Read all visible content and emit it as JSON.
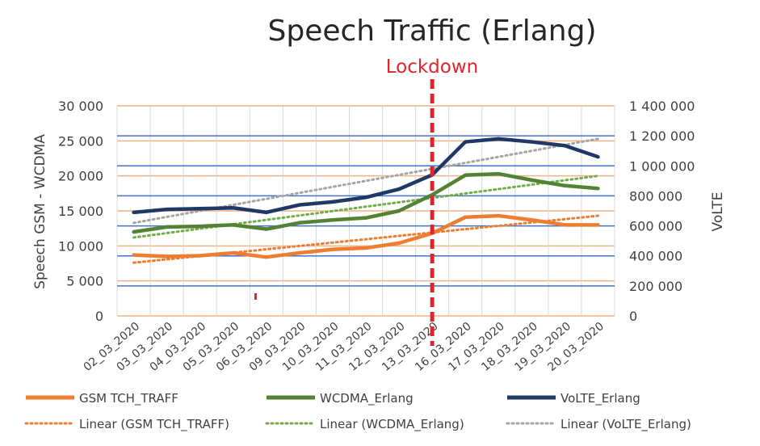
{
  "chart_data": {
    "type": "line",
    "title": "Speech Traffic (Erlang)",
    "annotation": "Lockdown",
    "ylabel_left": "Speech  GSM - WCDMA",
    "ylabel_right": "VoLTE",
    "ylim_left": [
      0,
      30000
    ],
    "ylim_right": [
      0,
      1400000
    ],
    "yticks_left": [
      "0",
      "5 000",
      "10 000",
      "15 000",
      "20 000",
      "25 000",
      "30 000"
    ],
    "yticks_right": [
      "0",
      "200 000",
      "400 000",
      "600 000",
      "800 000",
      "1 000 000",
      "1 200 000",
      "1 400 000"
    ],
    "categories": [
      "02_03_2020",
      "03_03_2020",
      "04_03_2020",
      "05_03_2020",
      "06_03_2020",
      "09_03_2020",
      "10_03_2020",
      "11_03_2020",
      "12_03_2020",
      "13_03_2020",
      "16_03_2020",
      "17_03_2020",
      "18_03_2020",
      "19_03_2020",
      "20_03_2020"
    ],
    "lockdown_category": "13_03_2020",
    "legend_position": "bottom",
    "series": [
      {
        "name": "GSM TCH_TRAFF",
        "axis": "left",
        "color": "#ed7d31",
        "values": [
          8700,
          8500,
          8600,
          9000,
          8400,
          9000,
          9500,
          9700,
          10400,
          11800,
          14100,
          14300,
          13700,
          13000,
          13000
        ]
      },
      {
        "name": "WCDMA_Erlang",
        "axis": "left",
        "color": "#548235",
        "values": [
          12000,
          12700,
          12800,
          13000,
          12400,
          13300,
          13700,
          14000,
          15000,
          17300,
          20100,
          20300,
          19400,
          18600,
          18200
        ]
      },
      {
        "name": "VoLTE_Erlang",
        "axis": "right",
        "color": "#203864",
        "values": [
          690000,
          710000,
          715000,
          720000,
          690000,
          740000,
          760000,
          790000,
          845000,
          940000,
          1160000,
          1180000,
          1160000,
          1135000,
          1060000
        ]
      }
    ],
    "trendlines": [
      {
        "name": "Linear (GSM TCH_TRAFF)",
        "axis": "left",
        "color": "#ed7d31",
        "start": 7600,
        "end": 14300
      },
      {
        "name": "Linear (WCDMA_Erlang)",
        "axis": "left",
        "color": "#70ad47",
        "start": 11200,
        "end": 20000
      },
      {
        "name": "Linear (VoLTE_Erlang)",
        "axis": "right",
        "color": "#a5a5a5",
        "start": 620000,
        "end": 1180000
      }
    ]
  }
}
